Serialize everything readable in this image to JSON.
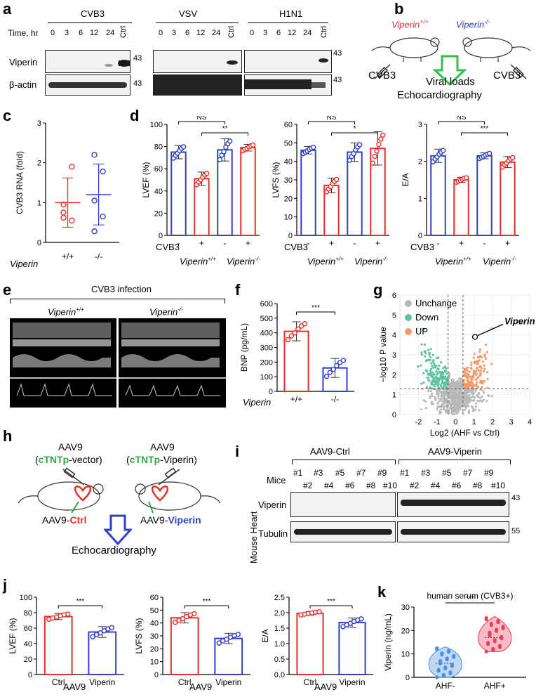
{
  "panels": {
    "a": {
      "label": "a",
      "cvb3_header": "CVB3",
      "vsv_header": "VSV",
      "h1n1_header": "H1N1",
      "time_label": "Time, hr",
      "timepoints": [
        "0",
        "3",
        "6",
        "12",
        "24"
      ],
      "ctrl": "Ctrl",
      "rows": [
        "Viperin",
        "β-actin"
      ],
      "mw": "43"
    },
    "b": {
      "label": "b",
      "wt": "Viperin+/+",
      "ko": "Viperin-/-",
      "wt_base": "Viperin",
      "wt_sup": "+/+",
      "ko_base": "Viperin",
      "ko_sup": "-/-",
      "virus_left": "CVB3",
      "virus_right": "CVB3",
      "line1": "Viral loads",
      "line2": "Echocardiography"
    },
    "c": {
      "label": "c",
      "group_label": "Viperin"
    },
    "d": {
      "label": "d",
      "virus": "CVB3",
      "minus": "-",
      "plus": "+",
      "wt": "Viperin",
      "wt_sup": "+/+",
      "ko": "Viperin",
      "ko_sup": "-/-"
    },
    "e": {
      "label": "e",
      "title": "CVB3 infection",
      "wt": "Viperin",
      "wt_sup": "+/+",
      "ko": "Viperin",
      "ko_sup": "-/-"
    },
    "f": {
      "label": "f",
      "group_label": "Viperin"
    },
    "g": {
      "label": "g",
      "annotation": "Viperin"
    },
    "h": {
      "label": "h",
      "left_top": "AAV9",
      "left_paren_open": "(",
      "left_promoter": "cTNTp",
      "left_rest": "-vector)",
      "right_top": "AAV9",
      "right_paren_open": "(",
      "right_promoter": "cTNTp",
      "right_rest": "-Viperin)",
      "left_bottom_a": "AAV9-",
      "left_bottom_b": "Ctrl",
      "right_bottom_a": "AAV9-",
      "right_bottom_b": "Viperin",
      "outcome": "Echocardiography"
    },
    "i": {
      "label": "i",
      "group_ctrl": "AAV9-Ctrl",
      "group_vip": "AAV9-Viperin",
      "mice_label": "Mice",
      "side_label": "Mouse Heart",
      "odd": [
        "#1",
        "#3",
        "#5",
        "#7",
        "#9"
      ],
      "even": [
        "#2",
        "#4",
        "#6",
        "#8",
        "#10"
      ],
      "rows": [
        "Viperin",
        "Tubulin"
      ],
      "mw_top": "43",
      "mw_bottom": "55"
    },
    "j": {
      "label": "j",
      "group_label": "AAV9"
    },
    "k": {
      "label": "k"
    }
  },
  "chart_data": [
    {
      "id": "c",
      "type": "scatter",
      "ylabel": "CVB3 RNA (fold)",
      "ylim": [
        0,
        3
      ],
      "yticks": [
        0,
        1,
        2,
        3
      ],
      "categories": [
        "+/+",
        "-/-"
      ],
      "series": [
        {
          "name": "+/+",
          "color": "#e8302a",
          "points": [
            0.95,
            1.9,
            0.62,
            0.55,
            0.75
          ],
          "mean": 1.0,
          "sd_low": 0.38,
          "sd_high": 1.62
        },
        {
          "name": "-/-",
          "color": "#3040c8",
          "points": [
            2.2,
            1.78,
            1.05,
            0.65,
            0.28
          ],
          "mean": 1.2,
          "sd_low": 0.44,
          "sd_high": 1.97
        }
      ],
      "xlabel": "Viperin"
    },
    {
      "id": "d1",
      "type": "bar",
      "ylabel": "LVEF (%)",
      "ylim": [
        0,
        100
      ],
      "yticks": [
        0,
        20,
        40,
        60,
        80,
        100
      ],
      "categories": [
        "-",
        "+",
        "-",
        "+"
      ],
      "colors": [
        "#3040c8",
        "#e8302a",
        "#3040c8",
        "#e8302a"
      ],
      "values": [
        75,
        51,
        77,
        79
      ],
      "err": [
        6,
        6,
        10,
        3
      ],
      "sig": [
        {
          "text": "NS",
          "from": 0,
          "to": 2,
          "level": 2
        },
        {
          "text": "**",
          "from": 1,
          "to": 3,
          "level": 1
        }
      ]
    },
    {
      "id": "d2",
      "type": "bar",
      "ylabel": "LVFS (%)",
      "ylim": [
        0,
        60
      ],
      "yticks": [
        0,
        10,
        20,
        30,
        40,
        50,
        60
      ],
      "categories": [
        "-",
        "+",
        "-",
        "+"
      ],
      "colors": [
        "#3040c8",
        "#e8302a",
        "#3040c8",
        "#e8302a"
      ],
      "values": [
        46,
        27,
        45,
        47
      ],
      "err": [
        2,
        4,
        5,
        9
      ],
      "sig": [
        {
          "text": "NS",
          "from": 0,
          "to": 2,
          "level": 2
        },
        {
          "text": "*",
          "from": 1,
          "to": 3,
          "level": 1
        }
      ]
    },
    {
      "id": "d3",
      "type": "bar",
      "ylabel": "E/A",
      "ylim": [
        0,
        3
      ],
      "yticks": [
        0,
        1,
        2,
        3
      ],
      "categories": [
        "-",
        "+",
        "-",
        "+"
      ],
      "colors": [
        "#3040c8",
        "#e8302a",
        "#3040c8",
        "#e8302a"
      ],
      "values": [
        2.15,
        1.5,
        2.15,
        1.98
      ],
      "err": [
        0.18,
        0.07,
        0.08,
        0.15
      ],
      "sig": [
        {
          "text": "NS",
          "from": 0,
          "to": 2,
          "level": 2
        },
        {
          "text": "***",
          "from": 1,
          "to": 3,
          "level": 1
        }
      ]
    },
    {
      "id": "f",
      "type": "bar",
      "ylabel": "BNP (pg/mL)",
      "ylim": [
        0,
        600
      ],
      "yticks": [
        0,
        100,
        200,
        300,
        400,
        500,
        600
      ],
      "categories": [
        "+/+",
        "-/-"
      ],
      "colors": [
        "#e8302a",
        "#3040c8"
      ],
      "values": [
        410,
        160
      ],
      "err": [
        65,
        65
      ],
      "sig": [
        {
          "text": "***",
          "from": 0,
          "to": 1,
          "level": 1
        }
      ],
      "xlabel": "Viperin"
    },
    {
      "id": "g",
      "type": "scatter",
      "xlabel": "Log2 (AHF vs Ctrl)",
      "ylabel": "−log10 P value",
      "xlim": [
        -3,
        4
      ],
      "ylim": [
        0,
        6
      ],
      "xticks": [
        -2,
        -1,
        0,
        1,
        2,
        3,
        4
      ],
      "yticks": [
        0,
        1,
        2,
        3,
        4,
        5,
        6
      ],
      "legend": [
        "Unchange",
        "Down",
        "UP"
      ],
      "legend_colors": [
        "#b8b8b8",
        "#5cc3a0",
        "#f39a6a"
      ],
      "thresholds": {
        "x": [
          -0.4,
          0.4
        ],
        "y": 1.3
      },
      "highlight": {
        "label": "Viperin",
        "x": 1.05,
        "y": 3.9
      }
    },
    {
      "id": "j1",
      "type": "bar",
      "ylabel": "LVEF (%)",
      "ylim": [
        0,
        100
      ],
      "yticks": [
        0,
        20,
        40,
        60,
        80,
        100
      ],
      "categories": [
        "Ctrl",
        "Viperin"
      ],
      "colors": [
        "#e8302a",
        "#3040c8"
      ],
      "values": [
        75,
        55
      ],
      "err": [
        4,
        7
      ],
      "sig": [
        {
          "text": "***",
          "from": 0,
          "to": 1,
          "level": 1
        }
      ],
      "xlabel": "AAV9"
    },
    {
      "id": "j2",
      "type": "bar",
      "ylabel": "LVFS (%)",
      "ylim": [
        0,
        60
      ],
      "yticks": [
        0,
        10,
        20,
        30,
        40,
        50,
        60
      ],
      "categories": [
        "Ctrl",
        "Viperin"
      ],
      "colors": [
        "#e8302a",
        "#3040c8"
      ],
      "values": [
        44,
        28
      ],
      "err": [
        4,
        4
      ],
      "sig": [
        {
          "text": "***",
          "from": 0,
          "to": 1,
          "level": 1
        }
      ],
      "xlabel": "AAV9"
    },
    {
      "id": "j3",
      "type": "bar",
      "ylabel": "E/A",
      "ylim": [
        0,
        2.5
      ],
      "yticks": [
        0.0,
        0.5,
        1.0,
        1.5,
        2.0,
        2.5
      ],
      "categories": [
        "Ctrl",
        "Viperin"
      ],
      "colors": [
        "#e8302a",
        "#3040c8"
      ],
      "values": [
        1.98,
        1.68
      ],
      "err": [
        0.06,
        0.15
      ],
      "sig": [
        {
          "text": "***",
          "from": 0,
          "to": 1,
          "level": 1
        }
      ],
      "xlabel": "AAV9"
    },
    {
      "id": "k",
      "type": "violin",
      "title": "human serum (CVB3+)",
      "ylabel": "Viperin (ng/mL)",
      "ylim": [
        0,
        30
      ],
      "yticks": [
        0,
        10,
        20,
        30
      ],
      "categories": [
        "AHF-",
        "AHF+"
      ],
      "colors": [
        "#4a90e2",
        "#e8405a"
      ],
      "medians": [
        6,
        17
      ],
      "ranges": [
        [
          0,
          13
        ],
        [
          11,
          26
        ]
      ],
      "sig": [
        {
          "text": "***",
          "from": 0,
          "to": 1,
          "level": 1
        }
      ]
    }
  ]
}
